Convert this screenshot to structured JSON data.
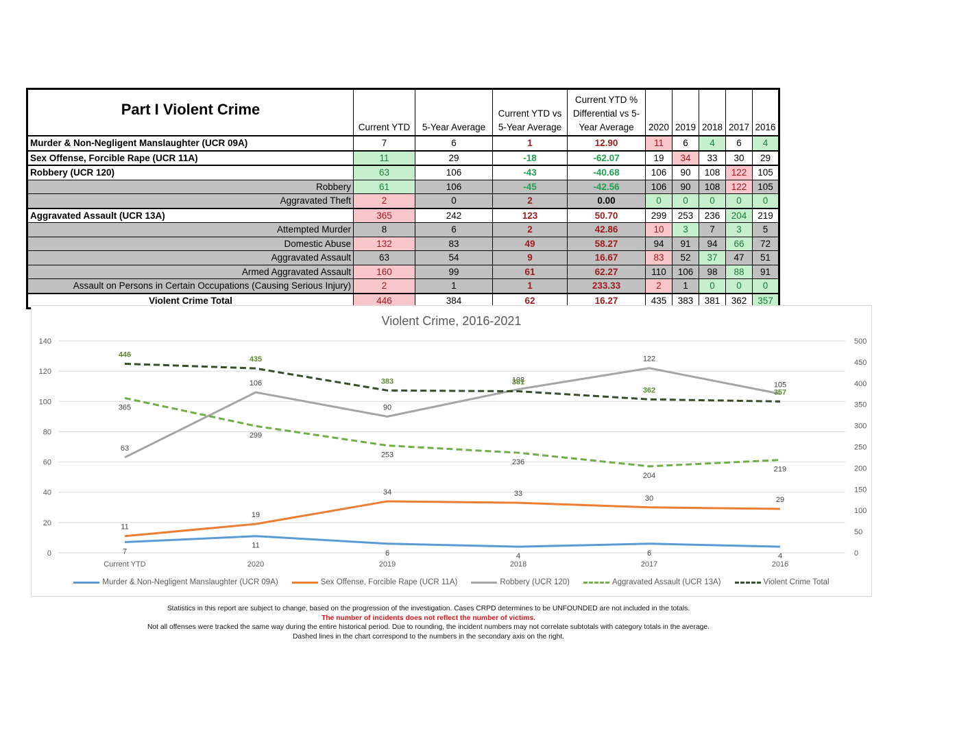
{
  "table": {
    "title": "Part I Violent Crime",
    "columns": [
      "Current YTD",
      "5-Year Average",
      "Current YTD vs 5-Year Average",
      "Current YTD % Differential vs 5-Year Average",
      "2020",
      "2019",
      "2018",
      "2017",
      "2016"
    ],
    "column_header_lines": {
      "current_ytd": [
        "Current YTD"
      ],
      "five_year_avg": [
        "5-Year Average"
      ],
      "ytd_vs_avg": [
        "Current YTD vs",
        "5-Year Average"
      ],
      "pct_diff": [
        "Current YTD %",
        "Differential vs 5-",
        "Year Average"
      ]
    },
    "rows": [
      {
        "label": "Murder & Non-Negligent Manslaughter (UCR 09A)",
        "type": "main",
        "ytd": "7",
        "ytd_flag": "",
        "avg": "6",
        "diff": "1",
        "pct": "12.90",
        "years": [
          "11",
          "6",
          "4",
          "6",
          "4"
        ],
        "year_flags": [
          "red",
          "",
          "green",
          "",
          "green"
        ]
      },
      {
        "label": "Sex Offense, Forcible Rape (UCR 11A)",
        "type": "main",
        "ytd": "11",
        "ytd_flag": "green",
        "avg": "29",
        "diff": "-18",
        "pct": "-62.07",
        "years": [
          "19",
          "34",
          "33",
          "30",
          "29"
        ],
        "year_flags": [
          "",
          "red",
          "",
          "",
          ""
        ]
      },
      {
        "label": "Robbery (UCR 120)",
        "type": "main",
        "ytd": "63",
        "ytd_flag": "green",
        "avg": "106",
        "diff": "-43",
        "pct": "-40.68",
        "years": [
          "106",
          "90",
          "108",
          "122",
          "105"
        ],
        "year_flags": [
          "",
          "",
          "",
          "red",
          ""
        ]
      },
      {
        "label": "Robbery",
        "type": "sub",
        "ytd": "61",
        "ytd_flag": "green",
        "avg": "106",
        "diff": "-45",
        "pct": "-42.56",
        "years": [
          "106",
          "90",
          "108",
          "122",
          "105"
        ],
        "year_flags": [
          "",
          "",
          "",
          "red",
          ""
        ]
      },
      {
        "label": "Aggravated Theft",
        "type": "sub",
        "ytd": "2",
        "ytd_flag": "red",
        "avg": "0",
        "diff": "2",
        "pct": "0.00",
        "years": [
          "0",
          "0",
          "0",
          "0",
          "0"
        ],
        "year_flags": [
          "green",
          "green",
          "green",
          "green",
          "green"
        ]
      },
      {
        "label": "Aggravated Assault (UCR 13A)",
        "type": "main",
        "ytd": "365",
        "ytd_flag": "red",
        "avg": "242",
        "diff": "123",
        "pct": "50.70",
        "years": [
          "299",
          "253",
          "236",
          "204",
          "219"
        ],
        "year_flags": [
          "",
          "",
          "",
          "green",
          ""
        ]
      },
      {
        "label": "Attempted Murder",
        "type": "sub",
        "ytd": "8",
        "ytd_flag": "",
        "avg": "6",
        "diff": "2",
        "pct": "42.86",
        "years": [
          "10",
          "3",
          "7",
          "3",
          "5"
        ],
        "year_flags": [
          "red",
          "green",
          "",
          "green",
          ""
        ]
      },
      {
        "label": "Domestic Abuse",
        "type": "sub",
        "ytd": "132",
        "ytd_flag": "red",
        "avg": "83",
        "diff": "49",
        "pct": "58.27",
        "years": [
          "94",
          "91",
          "94",
          "66",
          "72"
        ],
        "year_flags": [
          "",
          "",
          "",
          "green",
          ""
        ]
      },
      {
        "label": "Aggravated Assault",
        "type": "sub",
        "ytd": "63",
        "ytd_flag": "",
        "avg": "54",
        "diff": "9",
        "pct": "16.67",
        "years": [
          "83",
          "52",
          "37",
          "47",
          "51"
        ],
        "year_flags": [
          "red",
          "",
          "green",
          "",
          ""
        ]
      },
      {
        "label": "Armed Aggravated Assault",
        "type": "sub",
        "ytd": "160",
        "ytd_flag": "red",
        "avg": "99",
        "diff": "61",
        "pct": "62.27",
        "years": [
          "110",
          "106",
          "98",
          "88",
          "91"
        ],
        "year_flags": [
          "",
          "",
          "",
          "green",
          ""
        ]
      },
      {
        "label": "Assault on Persons in Certain Occupations (Causing Serious Injury)",
        "type": "sub",
        "ytd": "2",
        "ytd_flag": "red",
        "avg": "1",
        "diff": "1",
        "pct": "233.33",
        "years": [
          "2",
          "1",
          "0",
          "0",
          "0"
        ],
        "year_flags": [
          "red",
          "",
          "green",
          "green",
          "green"
        ]
      },
      {
        "label": "Violent Crime Total",
        "type": "total",
        "ytd": "446",
        "ytd_flag": "red",
        "avg": "384",
        "diff": "62",
        "pct": "16.27",
        "years": [
          "435",
          "383",
          "381",
          "362",
          "357"
        ],
        "year_flags": [
          "",
          "",
          "",
          "",
          "green"
        ]
      }
    ]
  },
  "chart_data": {
    "type": "line",
    "title": "Violent Crime, 2016-2021",
    "categories": [
      "Current YTD",
      "2020",
      "2019",
      "2018",
      "2017",
      "2016"
    ],
    "y_left": {
      "min": 0,
      "max": 140,
      "ticks": [
        0,
        20,
        40,
        60,
        80,
        100,
        120,
        140
      ]
    },
    "y_right": {
      "min": 0,
      "max": 500,
      "ticks": [
        0,
        50,
        100,
        150,
        200,
        250,
        300,
        350,
        400,
        450,
        500
      ]
    },
    "grid": true,
    "legend_position": "bottom",
    "series": [
      {
        "name": "Murder & Non-Negligent Manslaughter (UCR 09A)",
        "axis": "left",
        "style": "solid",
        "color": "#5b9bd5",
        "label_color": "#404040",
        "label_pos": "below",
        "values": [
          7,
          11,
          6,
          4,
          6,
          4
        ]
      },
      {
        "name": "Sex Offense, Forcible Rape (UCR 11A)",
        "axis": "left",
        "style": "solid",
        "color": "#ed7d31",
        "label_color": "#404040",
        "label_pos": "above",
        "values": [
          11,
          19,
          34,
          33,
          30,
          29
        ]
      },
      {
        "name": "Robbery (UCR 120)",
        "axis": "left",
        "style": "solid",
        "color": "#a5a5a5",
        "label_color": "#404040",
        "label_pos": "above",
        "values": [
          63,
          106,
          90,
          108,
          122,
          105
        ]
      },
      {
        "name": "Aggravated Assault (UCR 13A)",
        "axis": "right",
        "style": "dashed",
        "color": "#70ad47",
        "label_color": "#404040",
        "label_pos": "below",
        "values": [
          365,
          299,
          253,
          236,
          204,
          219
        ]
      },
      {
        "name": "Violent Crime Total",
        "axis": "right",
        "style": "dashed",
        "color": "#3a4d2a",
        "label_color": "#5a8a2e",
        "label_pos": "above",
        "values": [
          446,
          435,
          383,
          381,
          362,
          357
        ]
      }
    ],
    "note": "Dashed lines correspond to the secondary axis on the right."
  },
  "notes": {
    "line1": "Statistics in this report are subject to change, based on the progression of the investigation.  Cases CRPD determines to be UNFOUNDED are not included in the totals.",
    "line2": "The number of incidents does not reflect the number of victims.",
    "line3": "Not all offenses were tracked the same way during the entire historical period.  Due to rounding, the incident numbers may not correlate subtotals with category totals in the average.",
    "line4": "Dashed lines in the chart correspond to the numbers in the secondary axis on the right."
  }
}
